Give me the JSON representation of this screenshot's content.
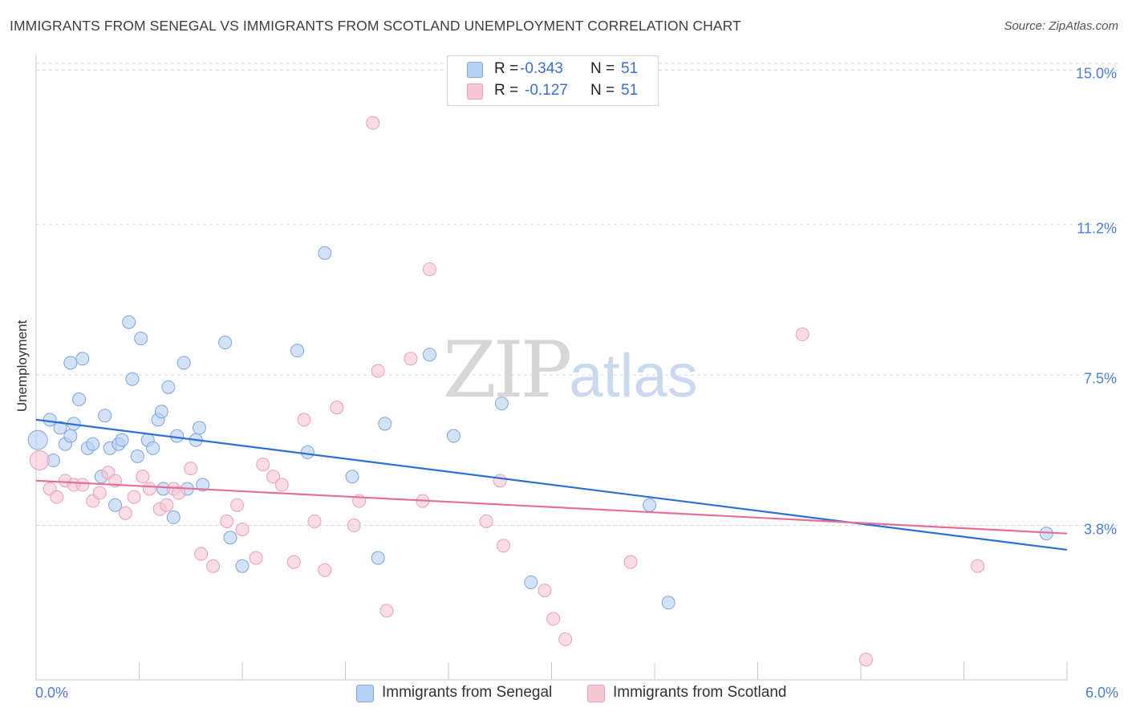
{
  "title": "IMMIGRANTS FROM SENEGAL VS IMMIGRANTS FROM SCOTLAND UNEMPLOYMENT CORRELATION CHART",
  "source": "Source: ZipAtlas.com",
  "watermark": {
    "zip": "ZIP",
    "atlas": "atlas"
  },
  "legend": {
    "senegal": {
      "r_label": "R =",
      "r_value": "-0.343",
      "n_label": "N =",
      "n_value": "51"
    },
    "scotland": {
      "r_label": "R =",
      "r_value": "-0.127",
      "n_label": "N =",
      "n_value": "51"
    }
  },
  "colors": {
    "senegal_fill": "#b8d0f2",
    "senegal_stroke": "#7ea6df",
    "senegal_line": "#2e6fd3",
    "scotland_fill": "#f6c7d5",
    "scotland_stroke": "#eba0b9",
    "scotland_line": "#e4709a",
    "tick_text": "#4a7fd4",
    "grid": "#d9d9d9"
  },
  "chart_data": {
    "type": "scatter",
    "title": "IMMIGRANTS FROM SENEGAL VS IMMIGRANTS FROM SCOTLAND UNEMPLOYMENT CORRELATION CHART",
    "xlabel": "",
    "ylabel": "Unemployment",
    "xlim": [
      0.0,
      6.0
    ],
    "ylim": [
      0.0,
      15.5
    ],
    "y_ticks": [
      3.8,
      7.5,
      11.2,
      15.0
    ],
    "y_tick_labels": [
      "3.8%",
      "7.5%",
      "11.2%",
      "15.0%"
    ],
    "x_tick_labels": {
      "min": "0.0%",
      "max": "6.0%"
    },
    "grid": "horizontal dashed",
    "legend_position": "top-center",
    "series": [
      {
        "name": "Immigrants from Senegal",
        "trend": {
          "x": [
            0.0,
            6.0
          ],
          "y": [
            6.4,
            3.2
          ]
        },
        "points": [
          {
            "x": 0.01,
            "y": 5.9,
            "big": true
          },
          {
            "x": 0.08,
            "y": 6.4
          },
          {
            "x": 0.1,
            "y": 5.4
          },
          {
            "x": 0.14,
            "y": 6.2
          },
          {
            "x": 0.17,
            "y": 5.8
          },
          {
            "x": 0.2,
            "y": 6.0
          },
          {
            "x": 0.22,
            "y": 6.3
          },
          {
            "x": 0.25,
            "y": 6.9
          },
          {
            "x": 0.27,
            "y": 7.9
          },
          {
            "x": 0.3,
            "y": 5.7
          },
          {
            "x": 0.33,
            "y": 5.8
          },
          {
            "x": 0.38,
            "y": 5.0
          },
          {
            "x": 0.4,
            "y": 6.5
          },
          {
            "x": 0.43,
            "y": 5.7
          },
          {
            "x": 0.46,
            "y": 4.3
          },
          {
            "x": 0.48,
            "y": 5.8
          },
          {
            "x": 0.5,
            "y": 5.9
          },
          {
            "x": 0.54,
            "y": 8.8
          },
          {
            "x": 0.56,
            "y": 7.4
          },
          {
            "x": 0.59,
            "y": 5.5
          },
          {
            "x": 0.61,
            "y": 8.4
          },
          {
            "x": 0.65,
            "y": 5.9
          },
          {
            "x": 0.68,
            "y": 5.7
          },
          {
            "x": 0.71,
            "y": 6.4
          },
          {
            "x": 0.73,
            "y": 6.6
          },
          {
            "x": 0.74,
            "y": 4.7
          },
          {
            "x": 0.77,
            "y": 7.2
          },
          {
            "x": 0.8,
            "y": 4.0
          },
          {
            "x": 0.82,
            "y": 6.0
          },
          {
            "x": 0.86,
            "y": 7.8
          },
          {
            "x": 0.88,
            "y": 4.7
          },
          {
            "x": 0.93,
            "y": 5.9
          },
          {
            "x": 0.95,
            "y": 6.2
          },
          {
            "x": 0.97,
            "y": 4.8
          },
          {
            "x": 1.1,
            "y": 8.3
          },
          {
            "x": 1.13,
            "y": 3.5
          },
          {
            "x": 1.2,
            "y": 2.8
          },
          {
            "x": 1.52,
            "y": 8.1
          },
          {
            "x": 1.58,
            "y": 5.6
          },
          {
            "x": 1.68,
            "y": 10.5
          },
          {
            "x": 1.84,
            "y": 5.0
          },
          {
            "x": 1.99,
            "y": 3.0
          },
          {
            "x": 2.03,
            "y": 6.3
          },
          {
            "x": 2.29,
            "y": 8.0
          },
          {
            "x": 2.43,
            "y": 6.0
          },
          {
            "x": 2.71,
            "y": 6.8
          },
          {
            "x": 2.88,
            "y": 2.4
          },
          {
            "x": 3.57,
            "y": 4.3
          },
          {
            "x": 3.68,
            "y": 1.9
          },
          {
            "x": 5.88,
            "y": 3.6
          },
          {
            "x": 0.2,
            "y": 7.8
          }
        ]
      },
      {
        "name": "Immigrants from Scotland",
        "trend": {
          "x": [
            0.0,
            6.0
          ],
          "y": [
            4.9,
            3.6
          ]
        },
        "points": [
          {
            "x": 0.02,
            "y": 5.4,
            "big": true
          },
          {
            "x": 0.08,
            "y": 4.7
          },
          {
            "x": 0.12,
            "y": 4.5
          },
          {
            "x": 0.17,
            "y": 4.9
          },
          {
            "x": 0.22,
            "y": 4.8
          },
          {
            "x": 0.27,
            "y": 4.8
          },
          {
            "x": 0.33,
            "y": 4.4
          },
          {
            "x": 0.37,
            "y": 4.6
          },
          {
            "x": 0.42,
            "y": 5.1
          },
          {
            "x": 0.46,
            "y": 4.9
          },
          {
            "x": 0.52,
            "y": 4.1
          },
          {
            "x": 0.57,
            "y": 4.5
          },
          {
            "x": 0.62,
            "y": 5.0
          },
          {
            "x": 0.66,
            "y": 4.7
          },
          {
            "x": 0.72,
            "y": 4.2
          },
          {
            "x": 0.76,
            "y": 4.3
          },
          {
            "x": 0.8,
            "y": 4.7
          },
          {
            "x": 0.83,
            "y": 4.6
          },
          {
            "x": 0.9,
            "y": 5.2
          },
          {
            "x": 0.96,
            "y": 3.1
          },
          {
            "x": 1.03,
            "y": 2.8
          },
          {
            "x": 1.11,
            "y": 3.9
          },
          {
            "x": 1.17,
            "y": 4.3
          },
          {
            "x": 1.2,
            "y": 3.7
          },
          {
            "x": 1.28,
            "y": 3.0
          },
          {
            "x": 1.32,
            "y": 5.3
          },
          {
            "x": 1.38,
            "y": 5.0
          },
          {
            "x": 1.43,
            "y": 4.8
          },
          {
            "x": 1.5,
            "y": 2.9
          },
          {
            "x": 1.56,
            "y": 6.4
          },
          {
            "x": 1.62,
            "y": 3.9
          },
          {
            "x": 1.68,
            "y": 2.7
          },
          {
            "x": 1.75,
            "y": 6.7
          },
          {
            "x": 1.85,
            "y": 3.8
          },
          {
            "x": 1.88,
            "y": 4.4
          },
          {
            "x": 1.96,
            "y": 13.7
          },
          {
            "x": 1.99,
            "y": 7.6
          },
          {
            "x": 2.04,
            "y": 1.7
          },
          {
            "x": 2.18,
            "y": 7.9
          },
          {
            "x": 2.25,
            "y": 4.4
          },
          {
            "x": 2.29,
            "y": 10.1
          },
          {
            "x": 2.62,
            "y": 3.9
          },
          {
            "x": 2.7,
            "y": 4.9
          },
          {
            "x": 2.72,
            "y": 3.3
          },
          {
            "x": 2.96,
            "y": 2.2
          },
          {
            "x": 3.01,
            "y": 1.5
          },
          {
            "x": 3.08,
            "y": 1.0
          },
          {
            "x": 3.46,
            "y": 2.9
          },
          {
            "x": 4.46,
            "y": 8.5
          },
          {
            "x": 4.83,
            "y": 0.5
          },
          {
            "x": 5.48,
            "y": 2.8
          }
        ]
      }
    ]
  },
  "bottom_legend": {
    "senegal": "Immigrants from Senegal",
    "scotland": "Immigrants from Scotland"
  }
}
